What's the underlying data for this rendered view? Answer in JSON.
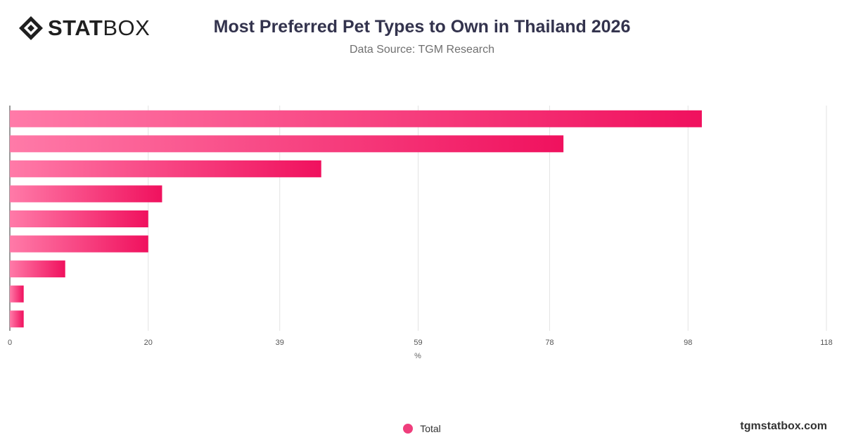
{
  "brand": {
    "logo_bold": "STAT",
    "logo_light": "BOX",
    "footer_domain": "tgmstatbox.com"
  },
  "chart_data": {
    "type": "bar",
    "orientation": "horizontal",
    "title": "Most Preferred Pet Types to Own in Thailand 2026",
    "subtitle": "Data Source: TGM Research",
    "xlabel": "%",
    "ylabel": "",
    "xlim": [
      0,
      118
    ],
    "x_ticks": [
      "0",
      "20",
      "39",
      "59",
      "78",
      "98",
      "118"
    ],
    "categories": [
      "",
      "",
      "",
      "",
      "",
      "",
      "",
      "",
      ""
    ],
    "series": [
      {
        "name": "Total",
        "values": [
          100,
          80,
          45,
          22,
          20,
          20,
          8,
          2,
          2
        ]
      }
    ],
    "grid": true,
    "legend": "bottom-center",
    "colors": {
      "bar_start": "#ff7aa8",
      "bar_end": "#f0115e",
      "legend_marker": "#ef3e7c"
    }
  }
}
